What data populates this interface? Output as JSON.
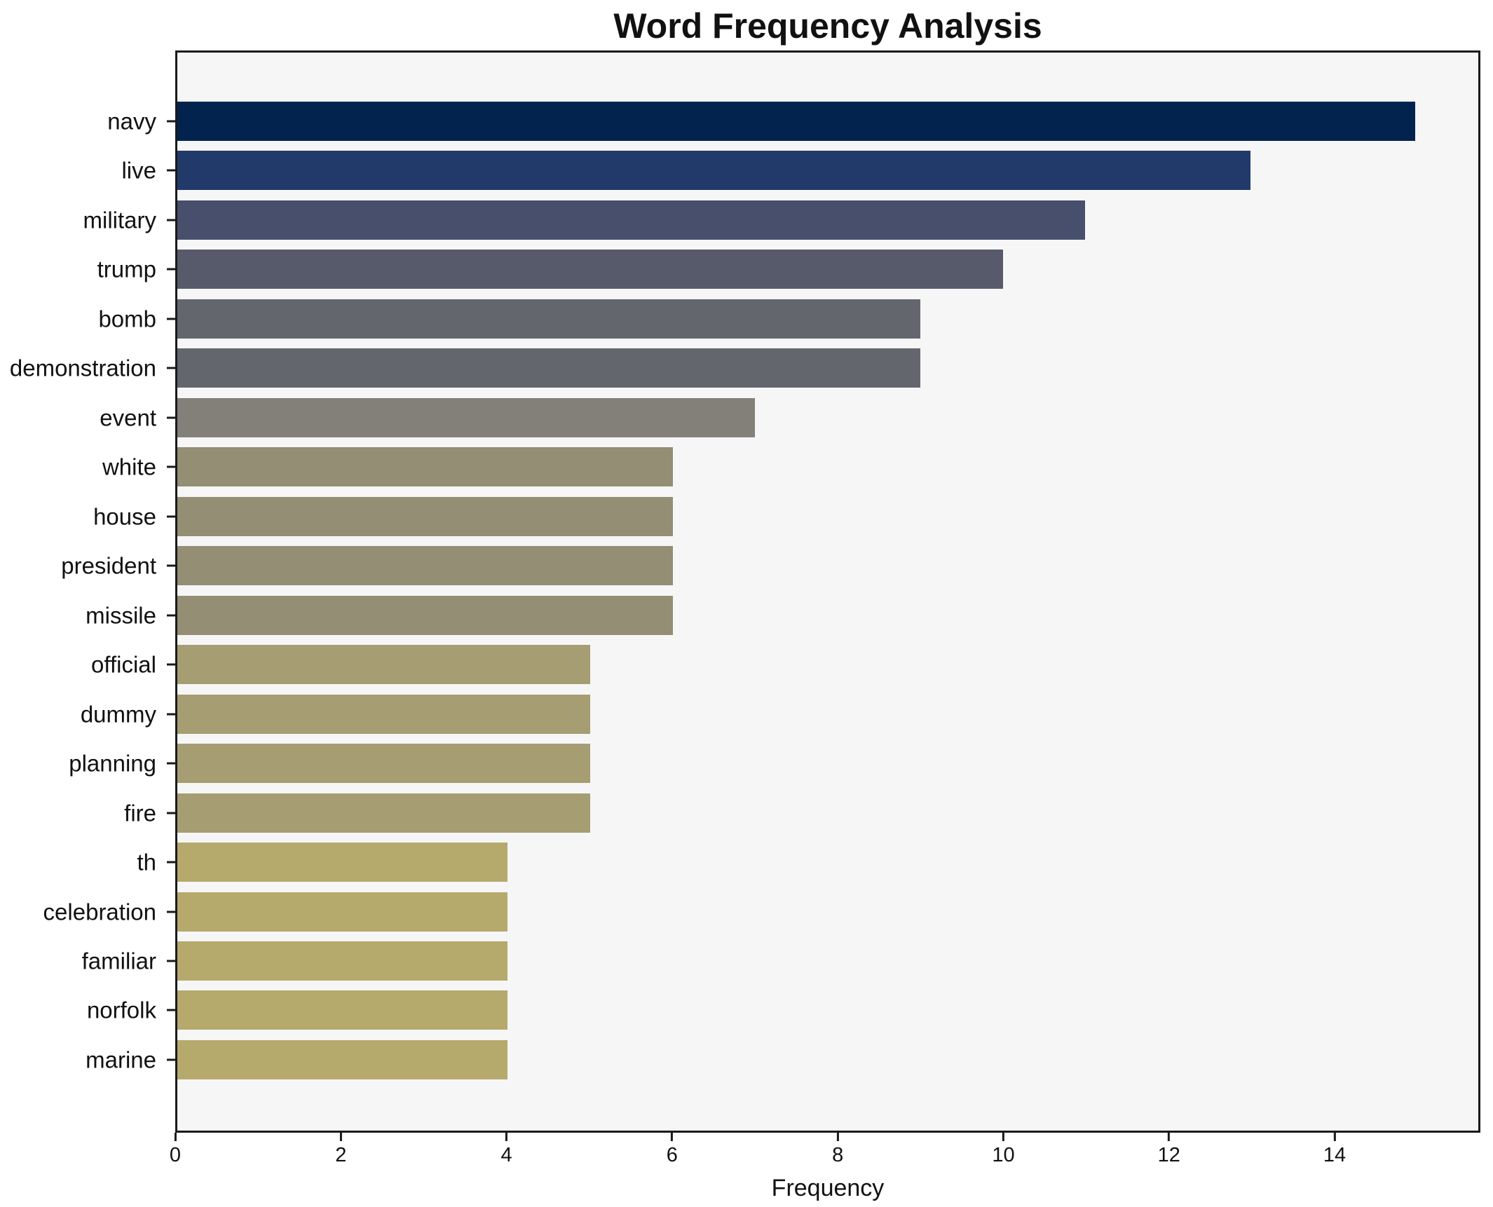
{
  "chart_data": {
    "type": "bar",
    "orientation": "horizontal",
    "title": "Word Frequency Analysis",
    "xlabel": "Frequency",
    "ylabel": "",
    "categories": [
      "navy",
      "live",
      "military",
      "trump",
      "bomb",
      "demonstration",
      "event",
      "white",
      "house",
      "president",
      "missile",
      "official",
      "dummy",
      "planning",
      "fire",
      "th",
      "celebration",
      "familiar",
      "norfolk",
      "marine"
    ],
    "values": [
      15,
      13,
      11,
      10,
      9,
      9,
      7,
      6,
      6,
      6,
      6,
      5,
      5,
      5,
      5,
      4,
      4,
      4,
      4,
      4
    ],
    "bar_colors": [
      "#02234d",
      "#223a69",
      "#474f6c",
      "#565a6a",
      "#64666e",
      "#64666e",
      "#83807a",
      "#938e74",
      "#938e74",
      "#938e74",
      "#938e74",
      "#a69d72",
      "#a69d72",
      "#a69d72",
      "#a69d72",
      "#b5a96c",
      "#b5a96c",
      "#b5a96c",
      "#b5a96c",
      "#b5a96c"
    ],
    "xlim": [
      0,
      15.76
    ],
    "xticks": [
      0,
      2,
      4,
      6,
      8,
      10,
      12,
      14
    ],
    "grid": false,
    "legend": "none",
    "plot_bg": "#f6f6f7",
    "figure_bg": "#ffffff",
    "spine_color": "#1a1a1a",
    "text_color": "#111111"
  }
}
